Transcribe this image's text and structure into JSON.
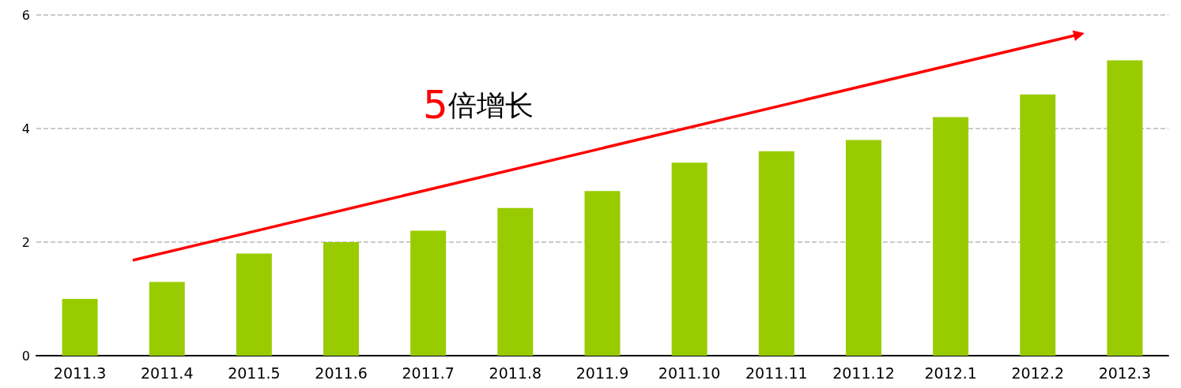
{
  "chart_data": {
    "type": "bar",
    "categories": [
      "2011.3",
      "2011.4",
      "2011.5",
      "2011.6",
      "2011.7",
      "2011.8",
      "2011.9",
      "2011.10",
      "2011.11",
      "2011.12",
      "2012.1",
      "2012.2",
      "2012.3"
    ],
    "values": [
      1.0,
      1.3,
      1.8,
      2.0,
      2.2,
      2.6,
      2.9,
      3.4,
      3.6,
      3.8,
      4.2,
      4.6,
      5.2
    ],
    "color": "#99cc00",
    "ylim": [
      0,
      6
    ],
    "yticks": [
      0,
      2,
      4,
      6
    ],
    "grid": "y",
    "annotations": [
      "5倍增长"
    ]
  }
}
